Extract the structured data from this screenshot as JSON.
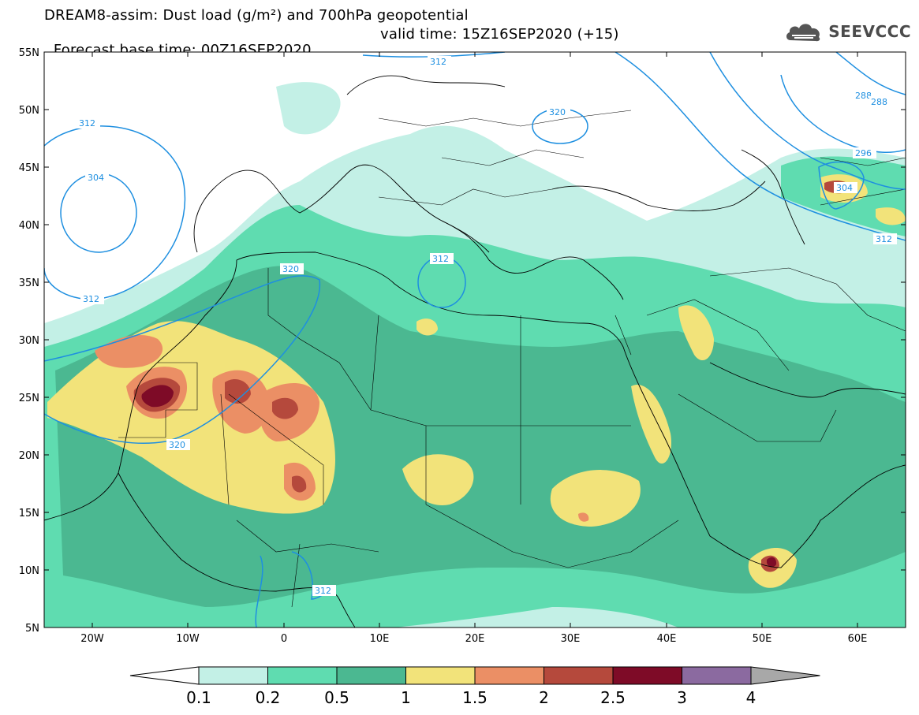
{
  "header": {
    "title_line1": "DREAM8-assim: Dust load (g/m²) and 700hPa geopotential",
    "base_time": "Forecast base time: 00Z16SEP2020",
    "valid_time": "valid time: 15Z16SEP2020 (+15)"
  },
  "logo": {
    "text": "SEEVCCC",
    "icon": "cloud-icon"
  },
  "axes": {
    "lat_labels": [
      "55N",
      "50N",
      "45N",
      "40N",
      "35N",
      "30N",
      "25N",
      "20N",
      "15N",
      "10N",
      "5N"
    ],
    "lon_labels": [
      "20W",
      "10W",
      "0",
      "10E",
      "20E",
      "30E",
      "40E",
      "50E",
      "60E"
    ]
  },
  "colorbar": {
    "levels": [
      "0.1",
      "0.2",
      "0.5",
      "1",
      "1.5",
      "2",
      "2.5",
      "3",
      "4"
    ],
    "colors": [
      "#c3f0e6",
      "#5fdcb0",
      "#4bb891",
      "#f2e37a",
      "#eb8f65",
      "#b5493c",
      "#7e0b27",
      "#8b6aa0",
      "#a8a8a8"
    ],
    "under_color": "#ffffff"
  },
  "contours": {
    "color": "#1e8fe0",
    "labels": [
      "312",
      "320",
      "312",
      "304",
      "312",
      "320",
      "312",
      "312",
      "320",
      "288",
      "288",
      "296",
      "304",
      "312"
    ]
  }
}
